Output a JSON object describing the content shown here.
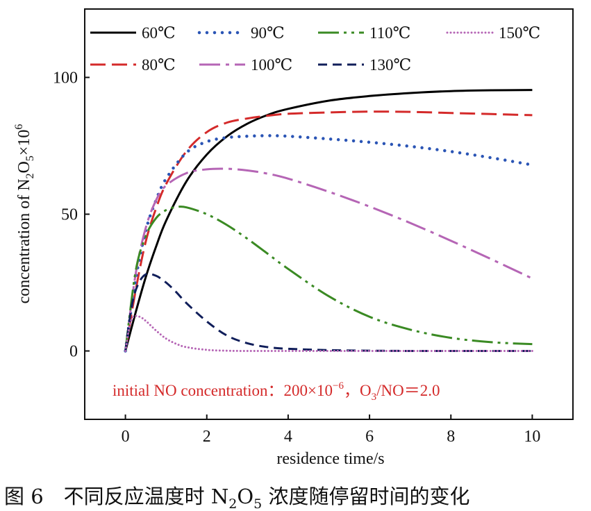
{
  "caption": {
    "prefix": "图 6　不同反应温度时 ",
    "N": "N",
    "sub2": "2",
    "O": "O",
    "sub5": "5",
    "suffix": " 浓度随停留时间的变化"
  },
  "chart_data": {
    "type": "line",
    "xlabel": "residence time/s",
    "ylabel_parts": {
      "prefix": "concentration of N",
      "sub2": "2",
      "mid": "O",
      "sub5": "5",
      "times": "×10",
      "sup": "6"
    },
    "xlim": [
      -1,
      11
    ],
    "ylim": [
      -25,
      125
    ],
    "xticks": [
      0,
      2,
      4,
      6,
      8,
      10
    ],
    "yticks": [
      0,
      50,
      100
    ],
    "grid": false,
    "legend_placement": "top-left",
    "annotation": {
      "text_a": "initial NO concentration：200",
      "times": "×10",
      "sup": "−6",
      "text_b": "，O",
      "sub3": "3",
      "text_c": "/NO＝2.0"
    },
    "series": [
      {
        "name": "60℃",
        "color": "#000000",
        "dash": "solid",
        "x": [
          0,
          0.25,
          0.5,
          0.75,
          1,
          1.5,
          2,
          2.5,
          3,
          3.5,
          4,
          5,
          6,
          7,
          8,
          9,
          10
        ],
        "y": [
          0,
          14,
          27,
          38,
          47.6,
          62,
          71.8,
          78.5,
          83.1,
          86.3,
          88.5,
          91.5,
          93.2,
          94.3,
          95,
          95.3,
          95.4
        ]
      },
      {
        "name": "80℃",
        "color": "#d42a2a",
        "dash": "long-dash",
        "x": [
          0,
          0.25,
          0.5,
          0.75,
          1,
          1.5,
          2,
          2.5,
          3,
          3.5,
          4,
          5,
          6,
          7,
          8,
          9,
          10
        ],
        "y": [
          0,
          22,
          40,
          52,
          61,
          73,
          80,
          83.5,
          85,
          86,
          86.7,
          87.2,
          87.5,
          87.4,
          87,
          86.6,
          86.2
        ]
      },
      {
        "name": "90℃",
        "color": "#2b55b5",
        "dash": "dotted",
        "x": [
          0,
          0.25,
          0.5,
          0.75,
          1,
          1.5,
          2,
          2.5,
          3,
          3.5,
          4,
          5,
          6,
          7,
          8,
          9,
          10
        ],
        "y": [
          0,
          26,
          44,
          55,
          63,
          72.5,
          76.5,
          78,
          78.5,
          78.7,
          78.5,
          77.5,
          76.3,
          74.8,
          72.9,
          70.6,
          68
        ]
      },
      {
        "name": "100℃",
        "color": "#b565b5",
        "dash": "dash-dot",
        "x": [
          0,
          0.25,
          0.5,
          0.75,
          1,
          1.5,
          2,
          2.5,
          3,
          3.5,
          4,
          5,
          6,
          7,
          8,
          9,
          10
        ],
        "y": [
          0,
          28,
          45,
          55,
          60.5,
          65,
          66.4,
          66.6,
          66,
          64.8,
          63,
          58.2,
          52.8,
          46.8,
          40.3,
          33.5,
          26.5
        ]
      },
      {
        "name": "110℃",
        "color": "#3a8a23",
        "dash": "dash-dot-dot",
        "x": [
          0,
          0.25,
          0.5,
          0.75,
          1,
          1.25,
          1.5,
          2,
          2.5,
          3,
          3.5,
          4,
          5,
          6,
          7,
          8,
          9,
          10
        ],
        "y": [
          0,
          29,
          42,
          48.5,
          51.5,
          52.6,
          52.5,
          50,
          46,
          41,
          35.5,
          30,
          20,
          12.5,
          7.8,
          4.8,
          3.2,
          2.5
        ]
      },
      {
        "name": "130℃",
        "color": "#101e5a",
        "dash": "dashed",
        "x": [
          0,
          0.15,
          0.3,
          0.5,
          0.75,
          1,
          1.25,
          1.5,
          2,
          2.5,
          3,
          3.5,
          4,
          5,
          6,
          7,
          8,
          9,
          10
        ],
        "y": [
          0,
          16,
          24,
          28,
          27.5,
          25,
          21.5,
          17.5,
          10.8,
          5.6,
          2.8,
          1.4,
          0.8,
          0.3,
          0.1,
          0,
          0,
          0,
          0
        ]
      },
      {
        "name": "150℃",
        "color": "#b565b5",
        "dash": "fine-dotted",
        "x": [
          0,
          0.1,
          0.2,
          0.35,
          0.5,
          0.75,
          1,
          1.25,
          1.5,
          2,
          2.5,
          3,
          4,
          5,
          6,
          8,
          10
        ],
        "y": [
          0,
          9,
          12.5,
          12.5,
          11,
          7.5,
          4.5,
          2.6,
          1.4,
          0.4,
          0.1,
          0,
          0,
          0,
          0,
          0,
          0
        ]
      }
    ]
  }
}
